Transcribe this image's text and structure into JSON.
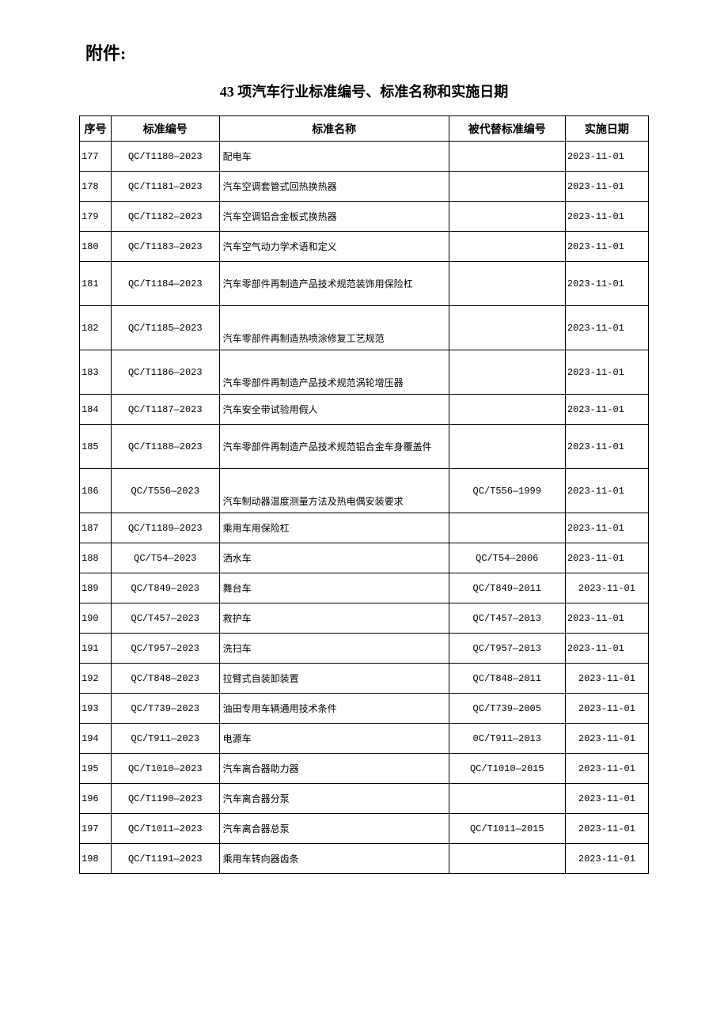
{
  "attachment": "附件:",
  "title": "43 项汽车行业标准编号、标准名称和实施日期",
  "headers": {
    "seq": "序号",
    "code": "标准编号",
    "name": "标准名称",
    "replace": "被代替标准编号",
    "date": "实施日期"
  },
  "rows": [
    {
      "seq": "177",
      "code": "QC/T1180—2023",
      "name": "配电车",
      "replace": "",
      "date": "2023-11-01",
      "tall": false,
      "dctr": false
    },
    {
      "seq": "178",
      "code": "QC/T1181—2023",
      "name": "汽车空调套管式回热换热器",
      "replace": "",
      "date": "2023-11-01",
      "tall": false,
      "dctr": false
    },
    {
      "seq": "179",
      "code": "QC/T1182—2023",
      "name": "汽车空调铝合金板式换热器",
      "replace": "",
      "date": "2023-11-01",
      "tall": false,
      "dctr": false
    },
    {
      "seq": "180",
      "code": "QC/T1183—2023",
      "name": "汽车空气动力学术语和定义",
      "replace": "",
      "date": "2023-11-01",
      "tall": false,
      "dctr": false
    },
    {
      "seq": "181",
      "code": "QC/T1184—2023",
      "name": "汽车零部件再制造产品技术规范装饰用保险杠",
      "replace": "",
      "date": "2023-11-01",
      "tall": true,
      "dctr": false
    },
    {
      "seq": "182",
      "code": "QC/T1185—2023",
      "name": "汽车零部件再制造热喷涂修复工艺规范",
      "replace": "",
      "date": "2023-11-01",
      "tall": true,
      "dctr": false,
      "nb": true
    },
    {
      "seq": "183",
      "code": "QC/T1186—2023",
      "name": "汽车零部件再制造产品技术规范涡轮增压器",
      "replace": "",
      "date": "2023-11-01",
      "tall": true,
      "dctr": false,
      "nb": true
    },
    {
      "seq": "184",
      "code": "QC/T1187—2023",
      "name": "汽车安全带试验用假人",
      "replace": "",
      "date": "2023-11-01",
      "tall": false,
      "dctr": false
    },
    {
      "seq": "185",
      "code": "QC/T1188—2023",
      "name": "汽车零部件再制造产品技术规范铝合金车身覆盖件",
      "replace": "",
      "date": "2023-11-01",
      "tall": true,
      "dctr": false
    },
    {
      "seq": "186",
      "code": "QC/T556—2023",
      "name": "汽车制动器温度测量方法及热电偶安装要求",
      "replace": "QC/T556—1999",
      "date": "2023-11-01",
      "tall": true,
      "dctr": false,
      "nb": true
    },
    {
      "seq": "187",
      "code": "QC/T1189—2023",
      "name": "乘用车用保险杠",
      "replace": "",
      "date": "2023-11-01",
      "tall": false,
      "dctr": false
    },
    {
      "seq": "188",
      "code": "QC/T54—2023",
      "name": "洒水车",
      "replace": "QC/T54—2006",
      "date": "2023-11-01",
      "tall": false,
      "dctr": false
    },
    {
      "seq": "189",
      "code": "QC/T849—2023",
      "name": "舞台车",
      "replace": "QC/T849—2011",
      "date": "2023-11-01",
      "tall": false,
      "dctr": true
    },
    {
      "seq": "190",
      "code": "QC/T457—2023",
      "name": "救护车",
      "replace": "QC/T457—2013",
      "date": "2023-11-01",
      "tall": false,
      "dctr": false
    },
    {
      "seq": "191",
      "code": "QC/T957—2023",
      "name": "洗扫车",
      "replace": "QC/T957—2013",
      "date": "2023-11-01",
      "tall": false,
      "dctr": false
    },
    {
      "seq": "192",
      "code": "QC/T848—2023",
      "name": "拉臂式自装卸装置",
      "replace": "QC/T848—2011",
      "date": "2023-11-01",
      "tall": false,
      "dctr": true
    },
    {
      "seq": "193",
      "code": "QC/T739—2023",
      "name": "油田专用车辆通用技术条件",
      "replace": "QC/T739—2005",
      "date": "2023-11-01",
      "tall": false,
      "dctr": true
    },
    {
      "seq": "194",
      "code": "QC/T911—2023",
      "name": "电源车",
      "replace": "0C/T911—2013",
      "date": "2023-11-01",
      "tall": false,
      "dctr": true
    },
    {
      "seq": "195",
      "code": "QC/T1010—2023",
      "name": "汽车离合器助力器",
      "replace": "QC/T1010—2015",
      "date": "2023-11-01",
      "tall": false,
      "dctr": true
    },
    {
      "seq": "196",
      "code": "QC/T1190—2023",
      "name": "汽车离合器分泵",
      "replace": "",
      "date": "2023-11-01",
      "tall": false,
      "dctr": true
    },
    {
      "seq": "197",
      "code": "QC/T1011—2023",
      "name": "汽车离合器总泵",
      "replace": "QC/T1011—2015",
      "date": "2023-11-01",
      "tall": false,
      "dctr": true
    },
    {
      "seq": "198",
      "code": "QC/T1191—2023",
      "name": "乘用车转向器齿条",
      "replace": "",
      "date": "2023-11-01",
      "tall": false,
      "dctr": true
    }
  ]
}
